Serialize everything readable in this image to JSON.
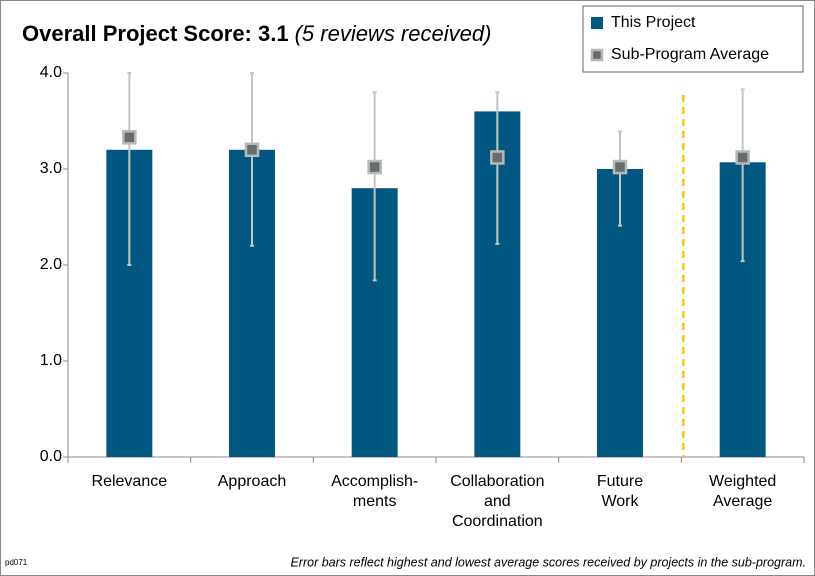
{
  "chart_data": {
    "type": "bar",
    "title": "Overall Project Score: 3.1",
    "subtitle": "(5 reviews received)",
    "categories": [
      [
        "Relevance"
      ],
      [
        "Approach"
      ],
      [
        "Accomplish-",
        "ments"
      ],
      [
        "Collaboration",
        "and",
        "Coordination"
      ],
      [
        "Future",
        "Work"
      ],
      [
        "Weighted",
        "Average"
      ]
    ],
    "series": [
      {
        "name": "This Project",
        "type": "bar",
        "color": "#00577f",
        "values": [
          3.2,
          3.2,
          2.8,
          3.6,
          3.0,
          3.07
        ]
      },
      {
        "name": "Sub-Program Average",
        "type": "marker",
        "color": "#656d71",
        "values": [
          3.33,
          3.2,
          3.02,
          3.12,
          3.02,
          3.12
        ],
        "error_high": [
          4.0,
          4.0,
          3.8,
          3.8,
          3.39,
          3.83
        ],
        "error_low": [
          2.0,
          2.2,
          1.84,
          2.22,
          2.41,
          2.04
        ],
        "error_color": "#c4c4c4"
      }
    ],
    "ylim": [
      0,
      4
    ],
    "yticks": [
      {
        "value": 0,
        "label": "0.0"
      },
      {
        "value": 1,
        "label": "1.0"
      },
      {
        "value": 2,
        "label": "2.0"
      },
      {
        "value": 3,
        "label": "3.0"
      },
      {
        "value": 4,
        "label": "4.0"
      }
    ],
    "legend": "top-right",
    "footnote": "Error bars reflect highest and lowest average scores received by projects in the sub-program.",
    "code": "pd071"
  }
}
